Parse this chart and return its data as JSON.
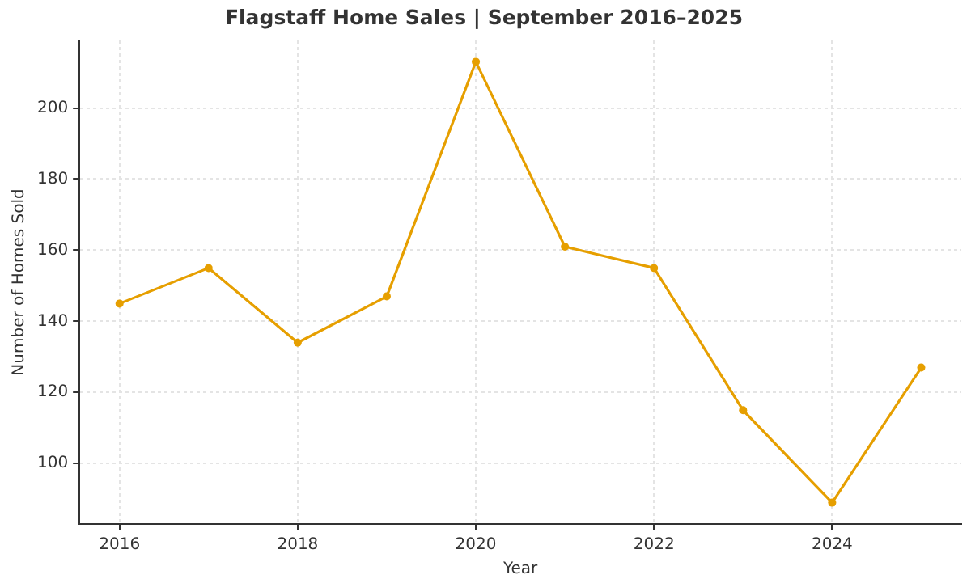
{
  "chart_data": {
    "type": "line",
    "title": "Flagstaff Home Sales | September 2016–2025",
    "xlabel": "Year",
    "ylabel": "Number of Homes Sold",
    "x": [
      2016,
      2017,
      2018,
      2019,
      2020,
      2021,
      2022,
      2023,
      2024,
      2025
    ],
    "series": [
      {
        "color": "#e69f00",
        "values": [
          145,
          155,
          134,
          147,
          213,
          161,
          155,
          115,
          89,
          127
        ]
      }
    ],
    "xlim": [
      2015.55,
      2025.45
    ],
    "xticks": [
      2016,
      2018,
      2020,
      2022,
      2024
    ],
    "ylim": [
      83,
      219
    ],
    "yticks": [
      100,
      120,
      140,
      160,
      180,
      200
    ],
    "grid": true,
    "marker": "circle",
    "line_style": "solid"
  }
}
